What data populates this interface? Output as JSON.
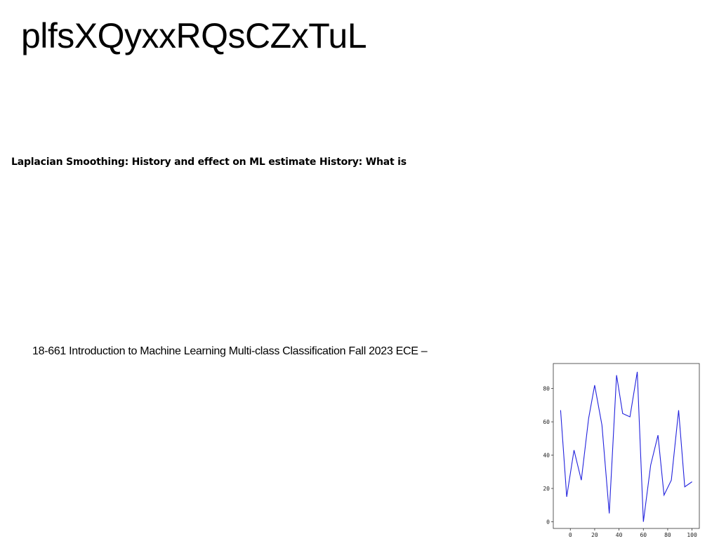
{
  "document": {
    "title": "plfsXQyxxRQsCZxTuL",
    "heading": "Laplacian Smoothing: History and effect on ML estimate History: What is",
    "course_line": "18-661 Introduction to Machine Learning Multi-class Classification Fall 2023 ECE –"
  },
  "chart_data": {
    "type": "line",
    "x": [
      -8,
      -3,
      3,
      9,
      15,
      20,
      26,
      32,
      38,
      43,
      49,
      55,
      60,
      66,
      72,
      77,
      83,
      89,
      94,
      100
    ],
    "series": [
      {
        "values": [
          67,
          15,
          43,
          25,
          62,
          82,
          58,
          5,
          88,
          65,
          63,
          90,
          0,
          34,
          52,
          16,
          25,
          67,
          21,
          24
        ],
        "color": "#2222dd"
      }
    ],
    "xticks": [
      0,
      20,
      40,
      60,
      80,
      100
    ],
    "yticks": [
      0,
      20,
      40,
      60,
      80
    ],
    "xlim": [
      -14,
      106
    ],
    "ylim": [
      -4,
      95
    ],
    "grid": false,
    "title": "",
    "xlabel": "",
    "ylabel": ""
  }
}
